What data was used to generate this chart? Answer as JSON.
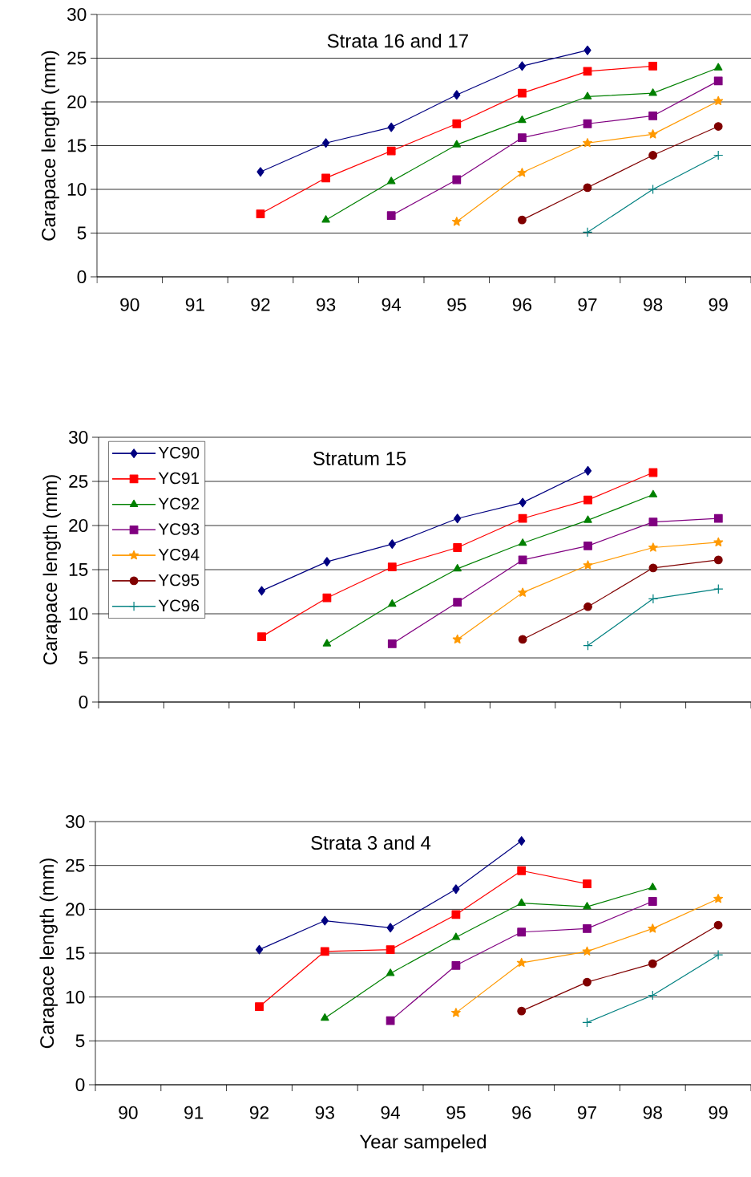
{
  "chart_data": [
    {
      "type": "line",
      "title": "Strata 16 and 17",
      "ylabel": "Carapace length (mm)",
      "categories": [
        "90",
        "91",
        "92",
        "93",
        "94",
        "95",
        "96",
        "97",
        "98",
        "99"
      ],
      "ylim": [
        0,
        30
      ],
      "yticks": [
        0,
        5,
        10,
        15,
        20,
        25,
        30
      ],
      "grid": "y",
      "line_style": "solid",
      "series": [
        {
          "color": "#000080",
          "marker": "diamond",
          "values": [
            null,
            null,
            12,
            15.3,
            17.1,
            20.8,
            24.1,
            25.9,
            null,
            null
          ]
        },
        {
          "color": "#ff0000",
          "marker": "square",
          "values": [
            null,
            null,
            7.2,
            11.3,
            14.4,
            17.5,
            21,
            23.5,
            24.1,
            null
          ]
        },
        {
          "color": "#008000",
          "marker": "triangle",
          "values": [
            null,
            null,
            null,
            6.5,
            10.9,
            15.1,
            17.9,
            20.6,
            21,
            23.9
          ]
        },
        {
          "color": "#800080",
          "marker": "square",
          "values": [
            null,
            null,
            null,
            null,
            7,
            11.1,
            15.9,
            17.5,
            18.4,
            22.4
          ]
        },
        {
          "color": "#ff9900",
          "marker": "star",
          "values": [
            null,
            null,
            null,
            null,
            null,
            6.3,
            11.9,
            15.3,
            16.3,
            20.1
          ]
        },
        {
          "color": "#800000",
          "marker": "circle",
          "values": [
            null,
            null,
            null,
            null,
            null,
            null,
            6.5,
            10.2,
            13.9,
            17.2
          ]
        },
        {
          "color": "#008080",
          "marker": "cross",
          "values": [
            null,
            null,
            null,
            null,
            null,
            null,
            null,
            5.1,
            10,
            13.9
          ]
        }
      ]
    },
    {
      "type": "line",
      "title": "Stratum 15",
      "ylabel": "Carapace length (mm)",
      "categories": [
        "90",
        "91",
        "92",
        "93",
        "94",
        "95",
        "96",
        "97",
        "98",
        "99"
      ],
      "tick_labels": "y",
      "ylim": [
        0,
        30
      ],
      "yticks": [
        0,
        5,
        10,
        15,
        20,
        25,
        30
      ],
      "grid": "y",
      "legend": "top left",
      "line_style": "solid",
      "series": [
        {
          "name": "YC90",
          "color": "#000080",
          "marker": "diamond",
          "values": [
            null,
            null,
            12.6,
            15.9,
            17.9,
            20.8,
            22.6,
            26.2,
            null,
            null
          ]
        },
        {
          "name": "YC91",
          "color": "#ff0000",
          "marker": "square",
          "values": [
            null,
            null,
            7.4,
            11.8,
            15.3,
            17.5,
            20.8,
            22.9,
            26,
            null
          ]
        },
        {
          "name": "YC92",
          "color": "#008000",
          "marker": "triangle",
          "values": [
            null,
            null,
            null,
            6.6,
            11.1,
            15.1,
            18,
            20.6,
            23.5,
            null
          ]
        },
        {
          "name": "YC93",
          "color": "#800080",
          "marker": "square",
          "values": [
            null,
            null,
            null,
            null,
            6.6,
            11.3,
            16.1,
            17.7,
            20.4,
            20.8
          ]
        },
        {
          "name": "YC94",
          "color": "#ff9900",
          "marker": "star",
          "values": [
            null,
            null,
            null,
            null,
            null,
            7.1,
            12.4,
            15.5,
            17.5,
            18.1
          ]
        },
        {
          "name": "YC95",
          "color": "#800000",
          "marker": "circle",
          "values": [
            null,
            null,
            null,
            null,
            null,
            null,
            7.1,
            10.8,
            15.2,
            16.1
          ]
        },
        {
          "name": "YC96",
          "color": "#008080",
          "marker": "cross",
          "values": [
            null,
            null,
            null,
            null,
            null,
            null,
            null,
            6.4,
            11.7,
            12.8
          ]
        }
      ]
    },
    {
      "type": "line",
      "title": "Strata 3 and 4",
      "xlabel": "Year sampeled",
      "ylabel": "Carapace length (mm)",
      "categories": [
        "90",
        "91",
        "92",
        "93",
        "94",
        "95",
        "96",
        "97",
        "98",
        "99"
      ],
      "ylim": [
        0,
        30
      ],
      "yticks": [
        0,
        5,
        10,
        15,
        20,
        25,
        30
      ],
      "grid": "y",
      "line_style": "solid",
      "series": [
        {
          "color": "#000080",
          "marker": "diamond",
          "values": [
            null,
            null,
            15.4,
            18.7,
            17.9,
            22.3,
            27.8,
            null,
            null,
            null
          ]
        },
        {
          "color": "#ff0000",
          "marker": "square",
          "values": [
            null,
            null,
            8.9,
            15.2,
            15.4,
            19.4,
            24.4,
            22.9,
            null,
            null
          ]
        },
        {
          "color": "#008000",
          "marker": "triangle",
          "values": [
            null,
            null,
            null,
            7.6,
            12.7,
            16.8,
            20.7,
            20.3,
            22.5,
            null
          ]
        },
        {
          "color": "#800080",
          "marker": "square",
          "values": [
            null,
            null,
            null,
            null,
            7.3,
            13.6,
            17.4,
            17.8,
            20.9,
            null
          ]
        },
        {
          "color": "#ff9900",
          "marker": "star",
          "values": [
            null,
            null,
            null,
            null,
            null,
            8.2,
            13.9,
            15.2,
            17.8,
            21.2
          ]
        },
        {
          "color": "#800000",
          "marker": "circle",
          "values": [
            null,
            null,
            null,
            null,
            null,
            null,
            8.4,
            11.7,
            13.8,
            18.2
          ]
        },
        {
          "color": "#008080",
          "marker": "cross",
          "values": [
            null,
            null,
            null,
            null,
            null,
            null,
            null,
            7.1,
            10.2,
            14.8
          ]
        }
      ]
    }
  ]
}
